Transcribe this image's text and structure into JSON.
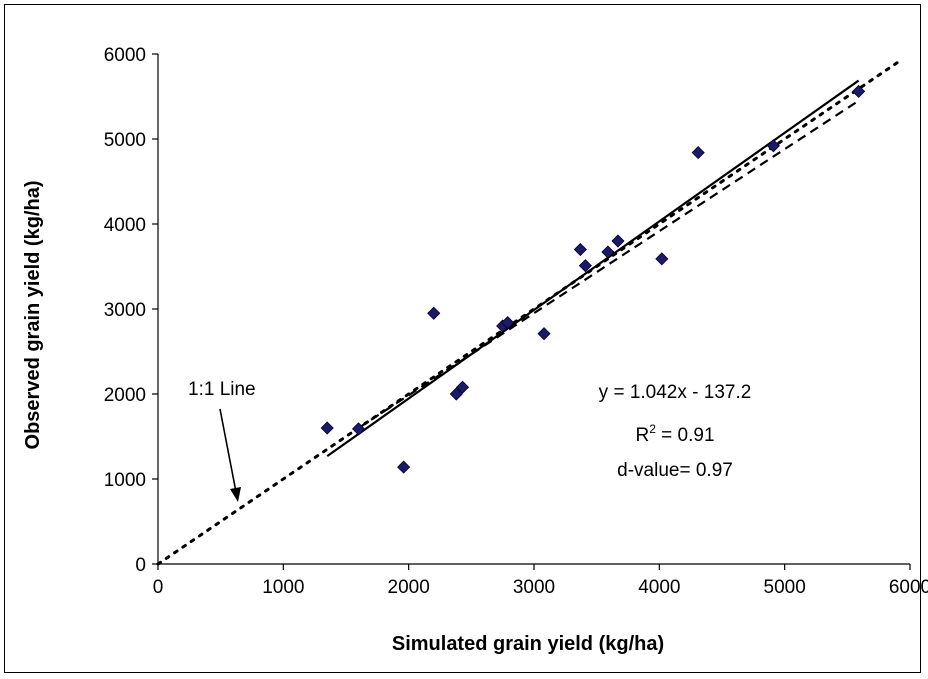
{
  "chart_data": {
    "type": "scatter",
    "xlabel": "Simulated grain yield (kg/ha)",
    "ylabel": "Observed grain yield (kg/ha)",
    "xlim": [
      0,
      6000
    ],
    "ylim": [
      0,
      6000
    ],
    "x_ticks": [
      "0",
      "1000",
      "2000",
      "3000",
      "4000",
      "5000",
      "6000"
    ],
    "y_ticks": [
      "0",
      "1000",
      "2000",
      "3000",
      "4000",
      "5000",
      "6000"
    ],
    "grid": false,
    "legend": "none",
    "marker_color": "#1a1a66",
    "points": [
      {
        "x": 1350,
        "y": 1600
      },
      {
        "x": 1600,
        "y": 1590
      },
      {
        "x": 1960,
        "y": 1140
      },
      {
        "x": 2200,
        "y": 2950
      },
      {
        "x": 2380,
        "y": 2000
      },
      {
        "x": 2430,
        "y": 2080
      },
      {
        "x": 2750,
        "y": 2800
      },
      {
        "x": 2790,
        "y": 2840
      },
      {
        "x": 3080,
        "y": 2710
      },
      {
        "x": 3370,
        "y": 3700
      },
      {
        "x": 3410,
        "y": 3510
      },
      {
        "x": 3590,
        "y": 3670
      },
      {
        "x": 3670,
        "y": 3800
      },
      {
        "x": 4020,
        "y": 3590
      },
      {
        "x": 4310,
        "y": 4840
      },
      {
        "x": 4910,
        "y": 4920
      },
      {
        "x": 5590,
        "y": 5560
      }
    ],
    "one_to_one_line": {
      "x": [
        0,
        5900
      ],
      "y": [
        0,
        5900
      ],
      "style": "dotted"
    },
    "regression_line": {
      "x": [
        1350,
        5590
      ],
      "style": "solid",
      "slope": 1.042,
      "intercept": -137.2
    },
    "trend_dashed_line": {
      "x": [
        1600,
        5590
      ],
      "y": [
        1600,
        5450
      ],
      "style": "dashed"
    },
    "annotations": {
      "one_to_one_label": "1:1 Line",
      "equation": "y = 1.042x - 137.2",
      "r2_prefix": "R",
      "r2_superscript": "2",
      "r2_value": " = 0.91",
      "d_value": "d-value= 0.97"
    }
  }
}
